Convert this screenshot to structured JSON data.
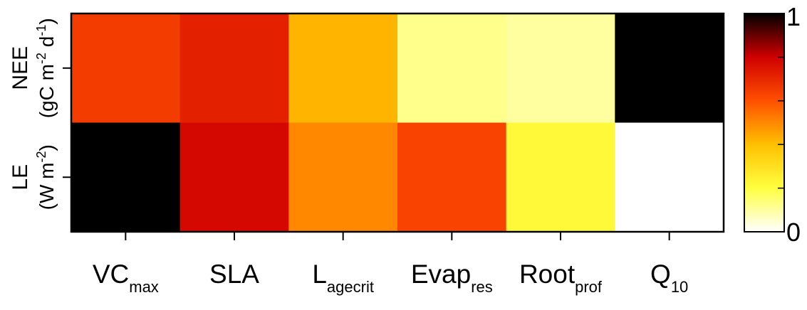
{
  "chart_data": {
    "type": "heatmap",
    "x_categories": [
      {
        "main": "VC",
        "sub": "max"
      },
      {
        "main": "SLA",
        "sub": ""
      },
      {
        "main": "L",
        "sub": "agecrit"
      },
      {
        "main": "Evap",
        "sub": "res"
      },
      {
        "main": "Root",
        "sub": "prof"
      },
      {
        "main": "Q",
        "sub": "10"
      }
    ],
    "y_categories": [
      {
        "line1": "NEE",
        "line2_parts": [
          [
            "(gC m",
            ""
          ],
          [
            "-2",
            "sup"
          ],
          [
            " d",
            ""
          ],
          [
            "-1",
            "sup"
          ],
          [
            ")",
            ""
          ]
        ]
      },
      {
        "line1": "LE",
        "line2_parts": [
          [
            "(W m",
            ""
          ],
          [
            "-2",
            "sup"
          ],
          [
            ")",
            ""
          ]
        ]
      }
    ],
    "values": [
      [
        0.65,
        0.72,
        0.42,
        0.12,
        0.1,
        1.0
      ],
      [
        1.0,
        0.78,
        0.5,
        0.63,
        0.22,
        0.0
      ]
    ],
    "colorbar": {
      "min_label": "0",
      "max_label": "1",
      "range": [
        0,
        1
      ],
      "colormap": "heat",
      "colors": [
        "#ffffff",
        "#ffff40",
        "#ffc000",
        "#ff5000",
        "#d00000",
        "#000000"
      ]
    }
  }
}
